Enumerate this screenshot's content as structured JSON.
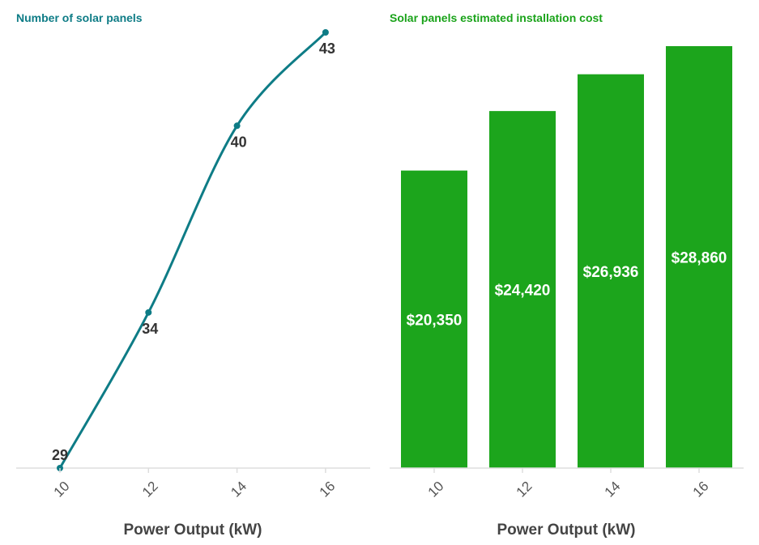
{
  "chart_data": [
    {
      "type": "line",
      "title": "Number of solar panels",
      "xlabel": "Power Output (kW)",
      "ylabel": "",
      "x": [
        "10",
        "12",
        "14",
        "16"
      ],
      "values": [
        29,
        34,
        40,
        43
      ],
      "point_labels": [
        "29",
        "34",
        "40",
        "43"
      ],
      "ylim": [
        29,
        43
      ],
      "grid": false,
      "colors": {
        "title": "#0e7c86",
        "line": "#0e7c86",
        "axis": "#dddddd"
      }
    },
    {
      "type": "bar",
      "title": "Solar panels estimated installation cost",
      "xlabel": "Power Output (kW)",
      "ylabel": "",
      "categories": [
        "10",
        "12",
        "14",
        "16"
      ],
      "values": [
        20350,
        24420,
        26936,
        28860
      ],
      "data_labels": [
        "$20,350",
        "$24,420",
        "$26,936",
        "$28,860"
      ],
      "ylim": [
        0,
        29800
      ],
      "grid": false,
      "colors": {
        "title": "#1aa31a",
        "bar": "#1ca51c",
        "axis": "#dddddd"
      }
    }
  ]
}
